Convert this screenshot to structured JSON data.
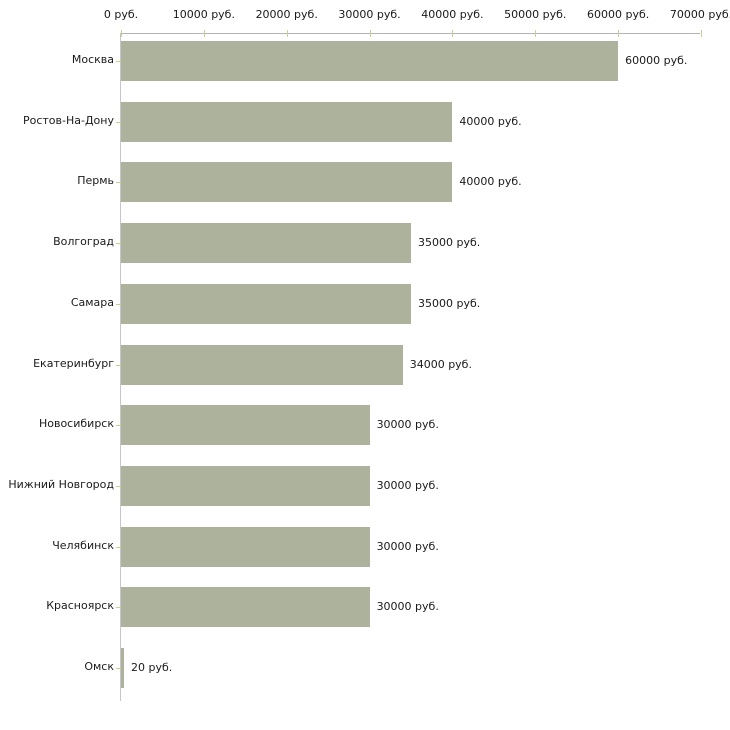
{
  "chart_data": {
    "type": "bar",
    "orientation": "horizontal",
    "title": "",
    "xlabel": "",
    "ylabel": "",
    "grid": false,
    "legend": false,
    "xlim": [
      0,
      70000
    ],
    "x_ticks": [
      0,
      10000,
      20000,
      30000,
      40000,
      50000,
      60000,
      70000
    ],
    "x_tick_labels": [
      "0 руб.",
      "10000 руб.",
      "20000 руб.",
      "30000 руб.",
      "40000 руб.",
      "50000 руб.",
      "60000 руб.",
      "70000 руб."
    ],
    "categories": [
      "Москва",
      "Ростов-На-Дону",
      "Пермь",
      "Волгоград",
      "Самара",
      "Екатеринбург",
      "Новосибирск",
      "Нижний Новгород",
      "Челябинск",
      "Красноярск",
      "Омск"
    ],
    "values": [
      60000,
      40000,
      40000,
      35000,
      35000,
      34000,
      30000,
      30000,
      30000,
      30000,
      20
    ],
    "value_labels": [
      "60000 руб.",
      "40000 руб.",
      "40000 руб.",
      "35000 руб.",
      "35000 руб.",
      "34000 руб.",
      "30000 руб.",
      "30000 руб.",
      "30000 руб.",
      "30000 руб.",
      "20 руб."
    ],
    "colors": {
      "bar_fill": "#acb29c",
      "axis_line_horizontal": "#b3b3b3",
      "axis_line_vertical": "#c6c6c6",
      "tick_mark": "#cccc99",
      "text": "#1a1a1a",
      "background": "#ffffff"
    }
  }
}
